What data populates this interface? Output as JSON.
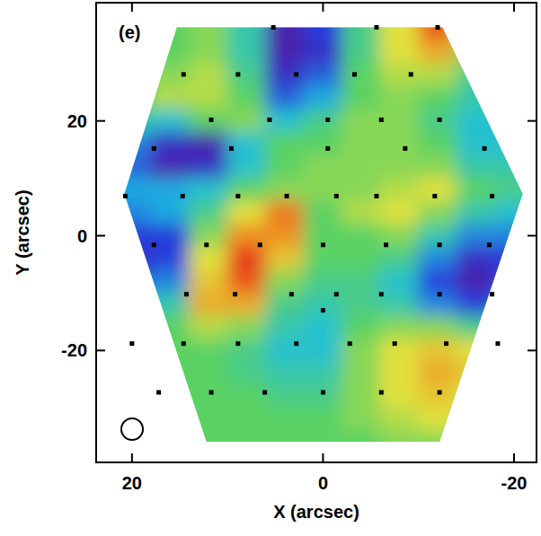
{
  "chart_data": {
    "type": "heatmap",
    "title": "(e)",
    "x_label": "X (arcsec)",
    "y_label": "Y (arcsec)",
    "xlim": [
      23.75,
      -22.35
    ],
    "ylim": [
      -39.5,
      40.6
    ],
    "xticks": [
      20,
      0,
      -20
    ],
    "yticks": [
      -20,
      0,
      20
    ],
    "grid": false,
    "x": [
      20,
      16,
      12,
      8,
      4,
      0,
      -4,
      -8,
      -12,
      -16,
      -20
    ],
    "y": [
      36,
      32,
      28,
      24,
      20,
      16,
      12,
      8,
      4,
      0,
      -4,
      -8,
      -12,
      -16,
      -20,
      -24,
      -28,
      -32,
      -36
    ],
    "zlim": [
      -1,
      1
    ],
    "z": [
      [
        0,
        0,
        0.1,
        -0.2,
        -0.9,
        -0.7,
        -0.1,
        0.3,
        0.8,
        0.3,
        0
      ],
      [
        0,
        0,
        0.1,
        -0.2,
        -0.9,
        -0.8,
        -0.1,
        0.3,
        0.5,
        0.1,
        0
      ],
      [
        0,
        0.1,
        0.2,
        -0.1,
        -0.8,
        -0.6,
        0,
        0.2,
        0.2,
        -0.1,
        -0.2
      ],
      [
        0,
        0.2,
        0.2,
        0,
        -0.6,
        -0.4,
        0,
        0.1,
        0,
        -0.2,
        -0.3
      ],
      [
        -0.2,
        -0.3,
        0,
        0.1,
        -0.3,
        -0.1,
        0.1,
        0.1,
        -0.1,
        -0.3,
        -0.3
      ],
      [
        -0.5,
        -0.8,
        -0.9,
        -0.3,
        0,
        0,
        0.1,
        0.1,
        0,
        -0.3,
        -0.3
      ],
      [
        -0.6,
        -0.9,
        -0.8,
        -0.3,
        0,
        0.1,
        0.1,
        0.1,
        0.1,
        -0.2,
        -0.2
      ],
      [
        -0.4,
        -0.4,
        -0.3,
        0,
        0.1,
        0.1,
        0.1,
        0.2,
        0.3,
        0,
        -0.1
      ],
      [
        -0.5,
        -0.4,
        -0.1,
        0.3,
        0.7,
        0,
        0.2,
        0.3,
        0.1,
        -0.2,
        -0.3
      ],
      [
        -0.7,
        -0.7,
        0.1,
        0.6,
        0.6,
        0,
        0,
        0.1,
        -0.2,
        -0.5,
        -0.5
      ],
      [
        -0.8,
        -0.7,
        0.3,
        0.9,
        0.4,
        0,
        0,
        -0.1,
        -0.5,
        -0.8,
        -0.7
      ],
      [
        -0.6,
        -0.5,
        0.4,
        0.8,
        0.1,
        -0.1,
        -0.1,
        -0.3,
        -0.7,
        -0.9,
        -0.7
      ],
      [
        -0.3,
        -0.2,
        0.5,
        0.5,
        -0.1,
        -0.2,
        -0.1,
        -0.2,
        -0.5,
        -0.7,
        -0.5
      ],
      [
        -0.1,
        0,
        0.2,
        0.1,
        -0.2,
        -0.3,
        0,
        0.1,
        0.1,
        -0.1,
        -0.2
      ],
      [
        0,
        0,
        0,
        -0.1,
        -0.3,
        -0.3,
        0.1,
        0.3,
        0.4,
        0.3,
        0
      ],
      [
        0,
        0,
        0,
        -0.1,
        -0.2,
        -0.2,
        0.1,
        0.3,
        0.5,
        0.4,
        0.1
      ],
      [
        0,
        0,
        0,
        0,
        -0.1,
        -0.1,
        0.1,
        0.3,
        0.4,
        0.3,
        0.1
      ],
      [
        0,
        0,
        0,
        0,
        0,
        0,
        0.1,
        0.2,
        0.3,
        0.2,
        0
      ],
      [
        0,
        0,
        0,
        0,
        0,
        0,
        0,
        0.1,
        0.1,
        0.1,
        0
      ]
    ],
    "footprint": {
      "x": [
        15.3,
        -12.5,
        -20.9,
        -12.2,
        12.2,
        20.8
      ],
      "y": [
        36.3,
        36.3,
        7.3,
        -35.9,
        -35.9,
        7.3
      ]
    },
    "points": {
      "x": [
        5.2,
        -5.6,
        -12.0,
        14.6,
        8.9,
        2.8,
        -3.3,
        -9.2,
        11.7,
        5.6,
        -0.5,
        -6.1,
        -12.2,
        17.7,
        9.6,
        -0.5,
        -8.6,
        -16.9,
        20.7,
        14.7,
        8.9,
        3.8,
        -1.4,
        -5.6,
        -11.7,
        -17.7,
        17.7,
        12.2,
        6.6,
        0,
        -6.6,
        -12.2,
        -17.4,
        14.3,
        9.2,
        3.3,
        -1.4,
        -6.1,
        -12.2,
        -17.7,
        0,
        20,
        14.6,
        8.9,
        2.8,
        -2.8,
        -7.5,
        -12.9,
        -18.3,
        17.2,
        11.7,
        6.1,
        0,
        -6.1,
        -12.2
      ],
      "y": [
        36.3,
        36.3,
        36.3,
        28.1,
        28.1,
        28.1,
        28.1,
        28.1,
        20.2,
        20.2,
        20.2,
        20.2,
        20.2,
        15.2,
        15.2,
        15.2,
        15.2,
        15.2,
        6.9,
        6.9,
        6.9,
        6.9,
        6.9,
        6.9,
        6.9,
        6.9,
        -1.6,
        -1.6,
        -1.6,
        -1.6,
        -1.6,
        -1.6,
        -1.6,
        -10.2,
        -10.2,
        -10.2,
        -10.2,
        -10.2,
        -10.2,
        -10.2,
        -13,
        -18.8,
        -18.8,
        -18.8,
        -18.8,
        -18.8,
        -18.8,
        -18.8,
        -18.8,
        -27.3,
        -27.3,
        -27.3,
        -27.3,
        -27.3,
        -27.3
      ]
    }
  }
}
